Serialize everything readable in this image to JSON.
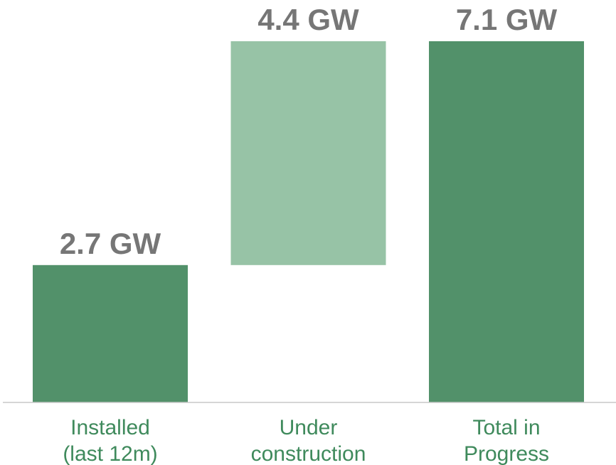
{
  "chart_data": {
    "type": "bar",
    "subtype": "waterfall",
    "categories": [
      [
        "Installed",
        "(last 12m)"
      ],
      [
        "Under",
        "construction"
      ],
      [
        "Total in",
        "Progress"
      ]
    ],
    "values": [
      2.7,
      4.4,
      7.1
    ],
    "bases": [
      0,
      2.7,
      0
    ],
    "data_labels": [
      "2.7 GW",
      "4.4 GW",
      "7.1 GW"
    ],
    "unit": "GW",
    "ylim": [
      0,
      7.1
    ],
    "grid": false,
    "legend": "none",
    "colors": {
      "bars": [
        "#52916a",
        "#97c3a6",
        "#52916a"
      ],
      "value_label": "#767676",
      "category_label": "#3f8a5c",
      "baseline": "#c8c8c8"
    }
  }
}
